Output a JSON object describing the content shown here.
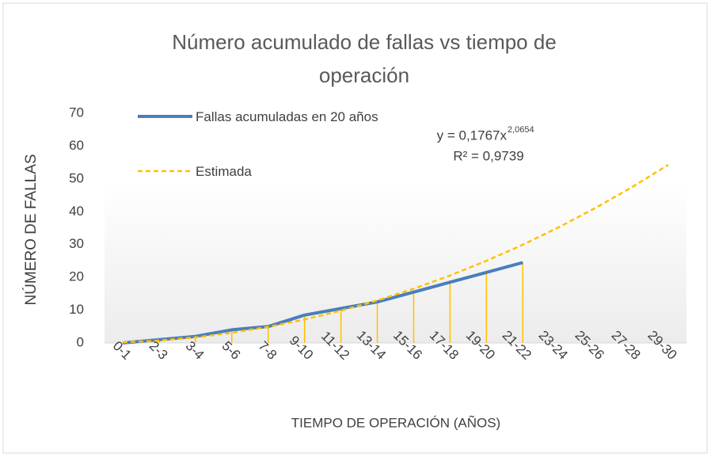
{
  "chart_data": {
    "type": "line",
    "title": "Número acumulado de fallas vs tiempo de operación",
    "x_label": "TIEMPO DE OPERACIÓN (AÑOS)",
    "y_label": "NÚMERO DE FALLAS",
    "categories": [
      "0-1",
      "2-3",
      "3-4",
      "5-6",
      "7-8",
      "9-10",
      "11-12",
      "13-14",
      "15-16",
      "17-18",
      "19-20",
      "21-22",
      "23-24",
      "25-26",
      "27-28",
      "29-30"
    ],
    "series": [
      {
        "name": "Fallas acumuladas en 20 años",
        "color": "#4a7ebb",
        "style": "solid",
        "drop_lines_color": "#ffc000",
        "values": [
          0,
          1,
          2,
          4,
          5,
          8.5,
          10.5,
          12.5,
          15.5,
          18.5,
          21.5,
          24.5,
          null,
          null,
          null,
          null
        ]
      },
      {
        "name": "Estimada",
        "color": "#ffc000",
        "style": "dashed",
        "values": [
          0.18,
          0.74,
          1.71,
          3.1,
          4.91,
          7.15,
          9.84,
          12.95,
          16.52,
          20.55,
          25.02,
          29.93,
          35.32,
          41.16,
          47.46,
          54.3
        ]
      }
    ],
    "annotations": {
      "equation": "y = 0,1767x",
      "exponent": "2,0654",
      "r2": "R² = 0,9739"
    },
    "ylim": [
      0,
      70
    ],
    "yticks": [
      0,
      10,
      20,
      30,
      40,
      50,
      60,
      70
    ],
    "grid": false,
    "legend": "top-left"
  }
}
